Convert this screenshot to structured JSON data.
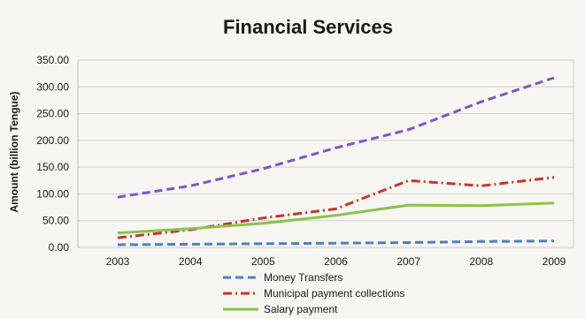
{
  "chart_data": {
    "type": "line",
    "title": "Financial Services",
    "xlabel": "",
    "ylabel": "Amount (billion Tengue)",
    "categories": [
      "2003",
      "2004",
      "2005",
      "2006",
      "2007",
      "2008",
      "2009"
    ],
    "yticks": [
      "0.00",
      "50.00",
      "100.00",
      "150.00",
      "200.00",
      "250.00",
      "300.00",
      "350.00"
    ],
    "ylim": [
      0,
      350
    ],
    "grid": true,
    "legend_position": "bottom",
    "series": [
      {
        "name": "Money Transfers",
        "color": "#4f81bd",
        "style": "dashed",
        "values": [
          5,
          6,
          7,
          8,
          9,
          11,
          12
        ]
      },
      {
        "name": "Municipal payment collections",
        "color": "#c0392b",
        "style": "dash-dot",
        "values": [
          18,
          33,
          55,
          72,
          125,
          115,
          131
        ]
      },
      {
        "name": "Salary payment",
        "color": "#8bc34a",
        "style": "solid",
        "values": [
          27,
          35,
          45,
          60,
          79,
          78,
          83
        ]
      },
      {
        "name": "",
        "color": "#7e57c2",
        "style": "dashed",
        "values": [
          94,
          115,
          147,
          186,
          220,
          272,
          317
        ]
      }
    ]
  }
}
